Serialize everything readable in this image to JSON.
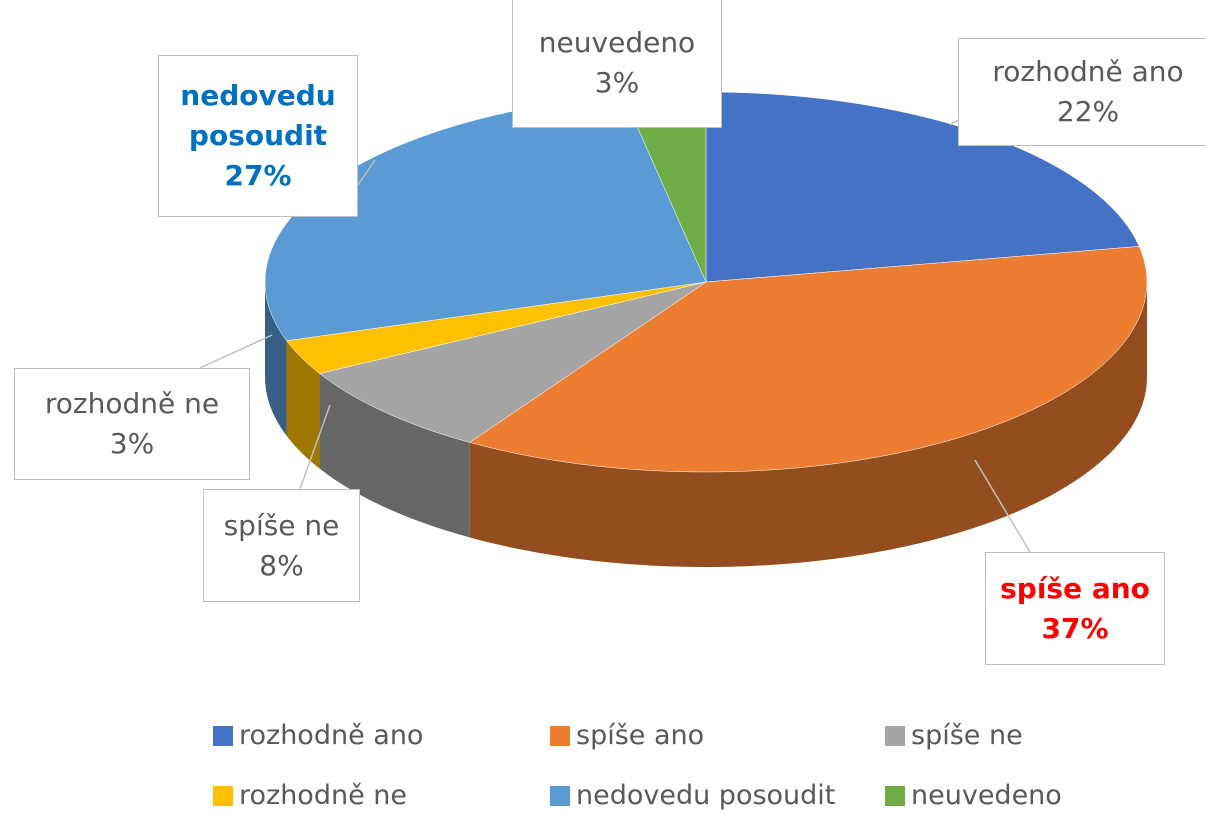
{
  "chart_data": {
    "type": "pie",
    "categories": [
      "rozhodně ano",
      "spíše ano",
      "spíše ne",
      "rozhodně ne",
      "nedovedu posoudit",
      "neuvedeno"
    ],
    "values": [
      22,
      37,
      8,
      3,
      27,
      3
    ],
    "value_labels": [
      "22%",
      "37%",
      "8%",
      "3%",
      "27%",
      "3%"
    ],
    "colors": [
      "#4472c4",
      "#ed7d31",
      "#a5a5a5",
      "#ffc000",
      "#5b9bd5",
      "#70ad47"
    ],
    "legend": "bottom"
  }
}
